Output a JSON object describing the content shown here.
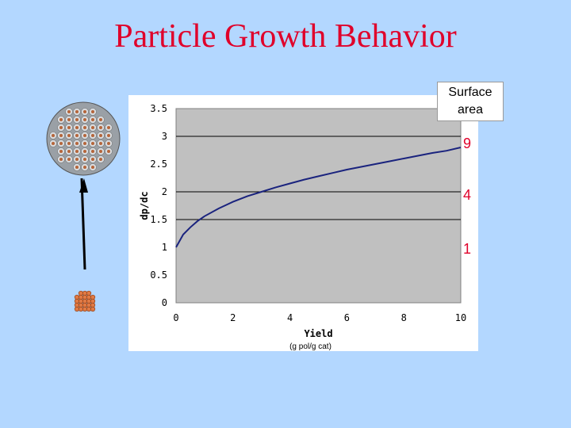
{
  "slide_title": "Particle Growth Behavior",
  "surface_area_label": "Surface area",
  "surface_area_values": [
    "9",
    "4",
    "1"
  ],
  "colors": {
    "title": "#e0002a",
    "curve": "#1a237e",
    "background": "#b3d7ff",
    "plot_area": "#c0c0c0"
  },
  "chart_data": {
    "type": "line",
    "xlabel": "Yield",
    "xlabel_unit": "(g pol/g cat)",
    "ylabel": "dp/dc",
    "xlim": [
      0,
      10
    ],
    "ylim": [
      0,
      3.5
    ],
    "x_ticks": [
      "0",
      "2",
      "4",
      "6",
      "8",
      "10"
    ],
    "y_ticks": [
      "0",
      "0.5",
      "1",
      "1.5",
      "2",
      "2.5",
      "3",
      "3.5"
    ],
    "horizontal_gridlines": [
      1.5,
      2,
      3
    ],
    "series": [
      {
        "x": [
          0,
          0.25,
          0.5,
          0.75,
          1,
          1.5,
          2,
          2.5,
          3,
          3.5,
          4,
          4.5,
          5,
          5.5,
          6,
          6.5,
          7,
          7.5,
          8,
          8.5,
          9,
          9.5,
          10
        ],
        "values": [
          1.0,
          1.23,
          1.36,
          1.47,
          1.56,
          1.7,
          1.82,
          1.92,
          2.0,
          2.08,
          2.15,
          2.22,
          2.28,
          2.34,
          2.4,
          2.45,
          2.5,
          2.55,
          2.6,
          2.65,
          2.7,
          2.74,
          2.8
        ]
      }
    ]
  }
}
